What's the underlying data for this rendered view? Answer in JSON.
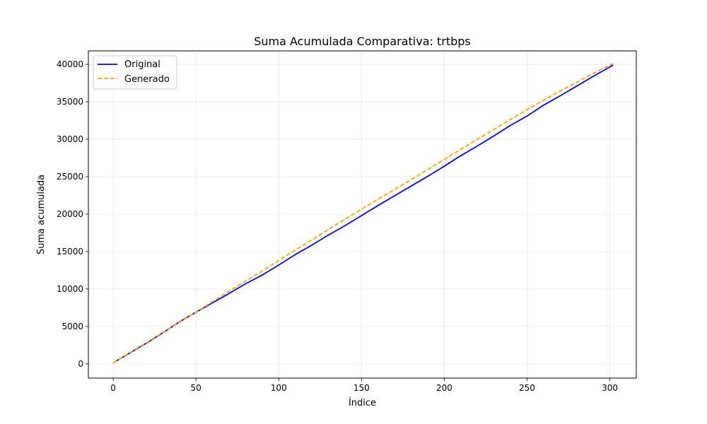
{
  "chart_data": {
    "type": "line",
    "title": "Suma Acumulada Comparativa: trtbps",
    "xlabel": "Índice",
    "ylabel": "Suma acumulada",
    "xlim": [
      -15,
      316
    ],
    "ylim": [
      -1900,
      41800
    ],
    "xticks": [
      0,
      50,
      100,
      150,
      200,
      250,
      300
    ],
    "yticks": [
      0,
      5000,
      10000,
      15000,
      20000,
      25000,
      30000,
      35000,
      40000
    ],
    "grid": true,
    "legend_position": "top-left",
    "series": [
      {
        "name": "Original",
        "color": "#0000ff",
        "style": "solid",
        "x": [
          0,
          10,
          20,
          30,
          40,
          50,
          60,
          70,
          80,
          90,
          100,
          110,
          120,
          130,
          140,
          150,
          160,
          170,
          180,
          190,
          200,
          210,
          220,
          230,
          240,
          250,
          260,
          270,
          280,
          290,
          302
        ],
        "values": [
          130,
          1450,
          2750,
          4150,
          5600,
          6900,
          8150,
          9400,
          10700,
          11850,
          13200,
          14600,
          15850,
          17200,
          18450,
          19800,
          21150,
          22450,
          23750,
          25050,
          26400,
          27800,
          29100,
          30450,
          31850,
          33100,
          34550,
          35800,
          37100,
          38400,
          39900
        ]
      },
      {
        "name": "Generado",
        "color": "#ffa500",
        "style": "dashed",
        "x": [
          0,
          10,
          20,
          30,
          40,
          50,
          60,
          70,
          80,
          90,
          100,
          110,
          120,
          130,
          140,
          150,
          160,
          170,
          180,
          190,
          200,
          210,
          220,
          230,
          240,
          250,
          260,
          270,
          280,
          290,
          302
        ],
        "values": [
          130,
          1500,
          2800,
          4200,
          5550,
          6900,
          8300,
          9700,
          11050,
          12400,
          13800,
          15200,
          16550,
          17950,
          19300,
          20650,
          22000,
          23300,
          24600,
          25950,
          27300,
          28650,
          30000,
          31300,
          32650,
          33950,
          35200,
          36450,
          37600,
          38800,
          40100
        ]
      }
    ]
  }
}
